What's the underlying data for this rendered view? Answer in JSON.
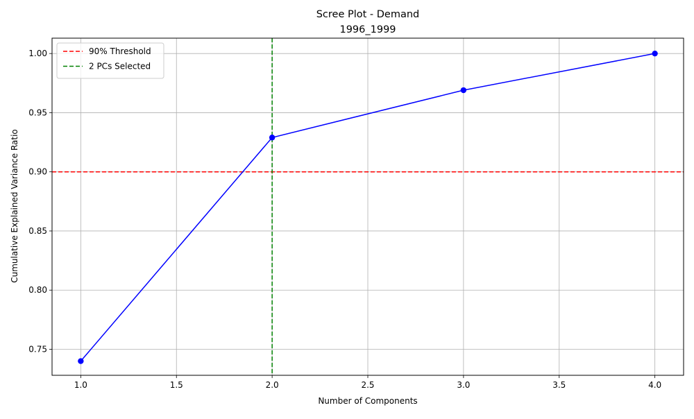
{
  "chart_data": {
    "type": "line",
    "title": "Scree Plot - Demand",
    "subtitle": "1996_1999",
    "xlabel": "Number of Components",
    "ylabel": "Cumulative Explained Variance Ratio",
    "xlim": [
      0.85,
      4.15
    ],
    "ylim": [
      0.728,
      1.013
    ],
    "xticks": [
      1.0,
      1.5,
      2.0,
      2.5,
      3.0,
      3.5,
      4.0
    ],
    "xtick_labels": [
      "1.0",
      "1.5",
      "2.0",
      "2.5",
      "3.0",
      "3.5",
      "4.0"
    ],
    "yticks": [
      0.75,
      0.8,
      0.85,
      0.9,
      0.95,
      1.0
    ],
    "ytick_labels": [
      "0.75",
      "0.80",
      "0.85",
      "0.90",
      "0.95",
      "1.00"
    ],
    "grid": true,
    "series": [
      {
        "x": [
          1,
          2,
          3,
          4
        ],
        "y": [
          0.74,
          0.929,
          0.969,
          1.0
        ],
        "color": "#0000ff",
        "marker": "circle"
      }
    ],
    "reference_lines": [
      {
        "orientation": "horizontal",
        "value": 0.9,
        "color": "#ff0000",
        "style": "dashed",
        "label": "90% Threshold"
      },
      {
        "orientation": "vertical",
        "value": 2,
        "color": "#008000",
        "style": "dashed",
        "label": "2 PCs Selected"
      }
    ],
    "legend": {
      "position": "top-left",
      "entries": [
        "90% Threshold",
        "2 PCs Selected"
      ]
    }
  }
}
